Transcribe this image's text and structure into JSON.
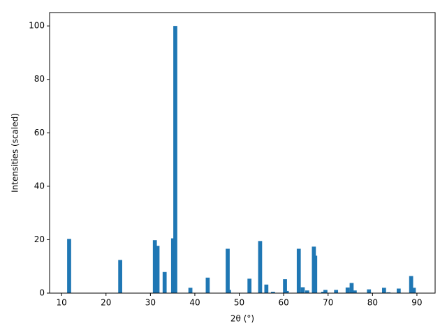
{
  "chart_data": {
    "type": "bar",
    "x_label": "2θ (°)",
    "y_label": "Intensities (scaled)",
    "color": "#1f77b4",
    "grid": false,
    "xlim": [
      7.3,
      94.1
    ],
    "ylim": [
      0,
      105
    ],
    "xticks": [
      10,
      20,
      30,
      40,
      50,
      60,
      70,
      80,
      90
    ],
    "yticks": [
      0,
      20,
      40,
      60,
      80,
      100
    ],
    "x": [
      11.7,
      23.2,
      31.0,
      31.6,
      33.2,
      35.1,
      35.6,
      39.0,
      42.9,
      47.4,
      47.7,
      52.3,
      54.7,
      56.1,
      57.6,
      60.3,
      60.7,
      63.4,
      64.3,
      65.3,
      66.8,
      67.1,
      68.9,
      69.4,
      71.8,
      74.4,
      75.3,
      76.0,
      79.2,
      82.6,
      83.6,
      85.9,
      88.7,
      89.3
    ],
    "values": [
      20.3,
      12.4,
      19.8,
      17.7,
      7.9,
      20.5,
      100,
      2.0,
      5.8,
      16.6,
      1.2,
      5.4,
      19.5,
      3.2,
      0.5,
      5.2,
      0.8,
      16.6,
      2.2,
      1.0,
      17.4,
      14.0,
      0.5,
      1.2,
      1.2,
      2.1,
      3.8,
      1.0,
      1.4,
      2.0,
      0.3,
      1.7,
      6.4,
      2.0
    ]
  }
}
